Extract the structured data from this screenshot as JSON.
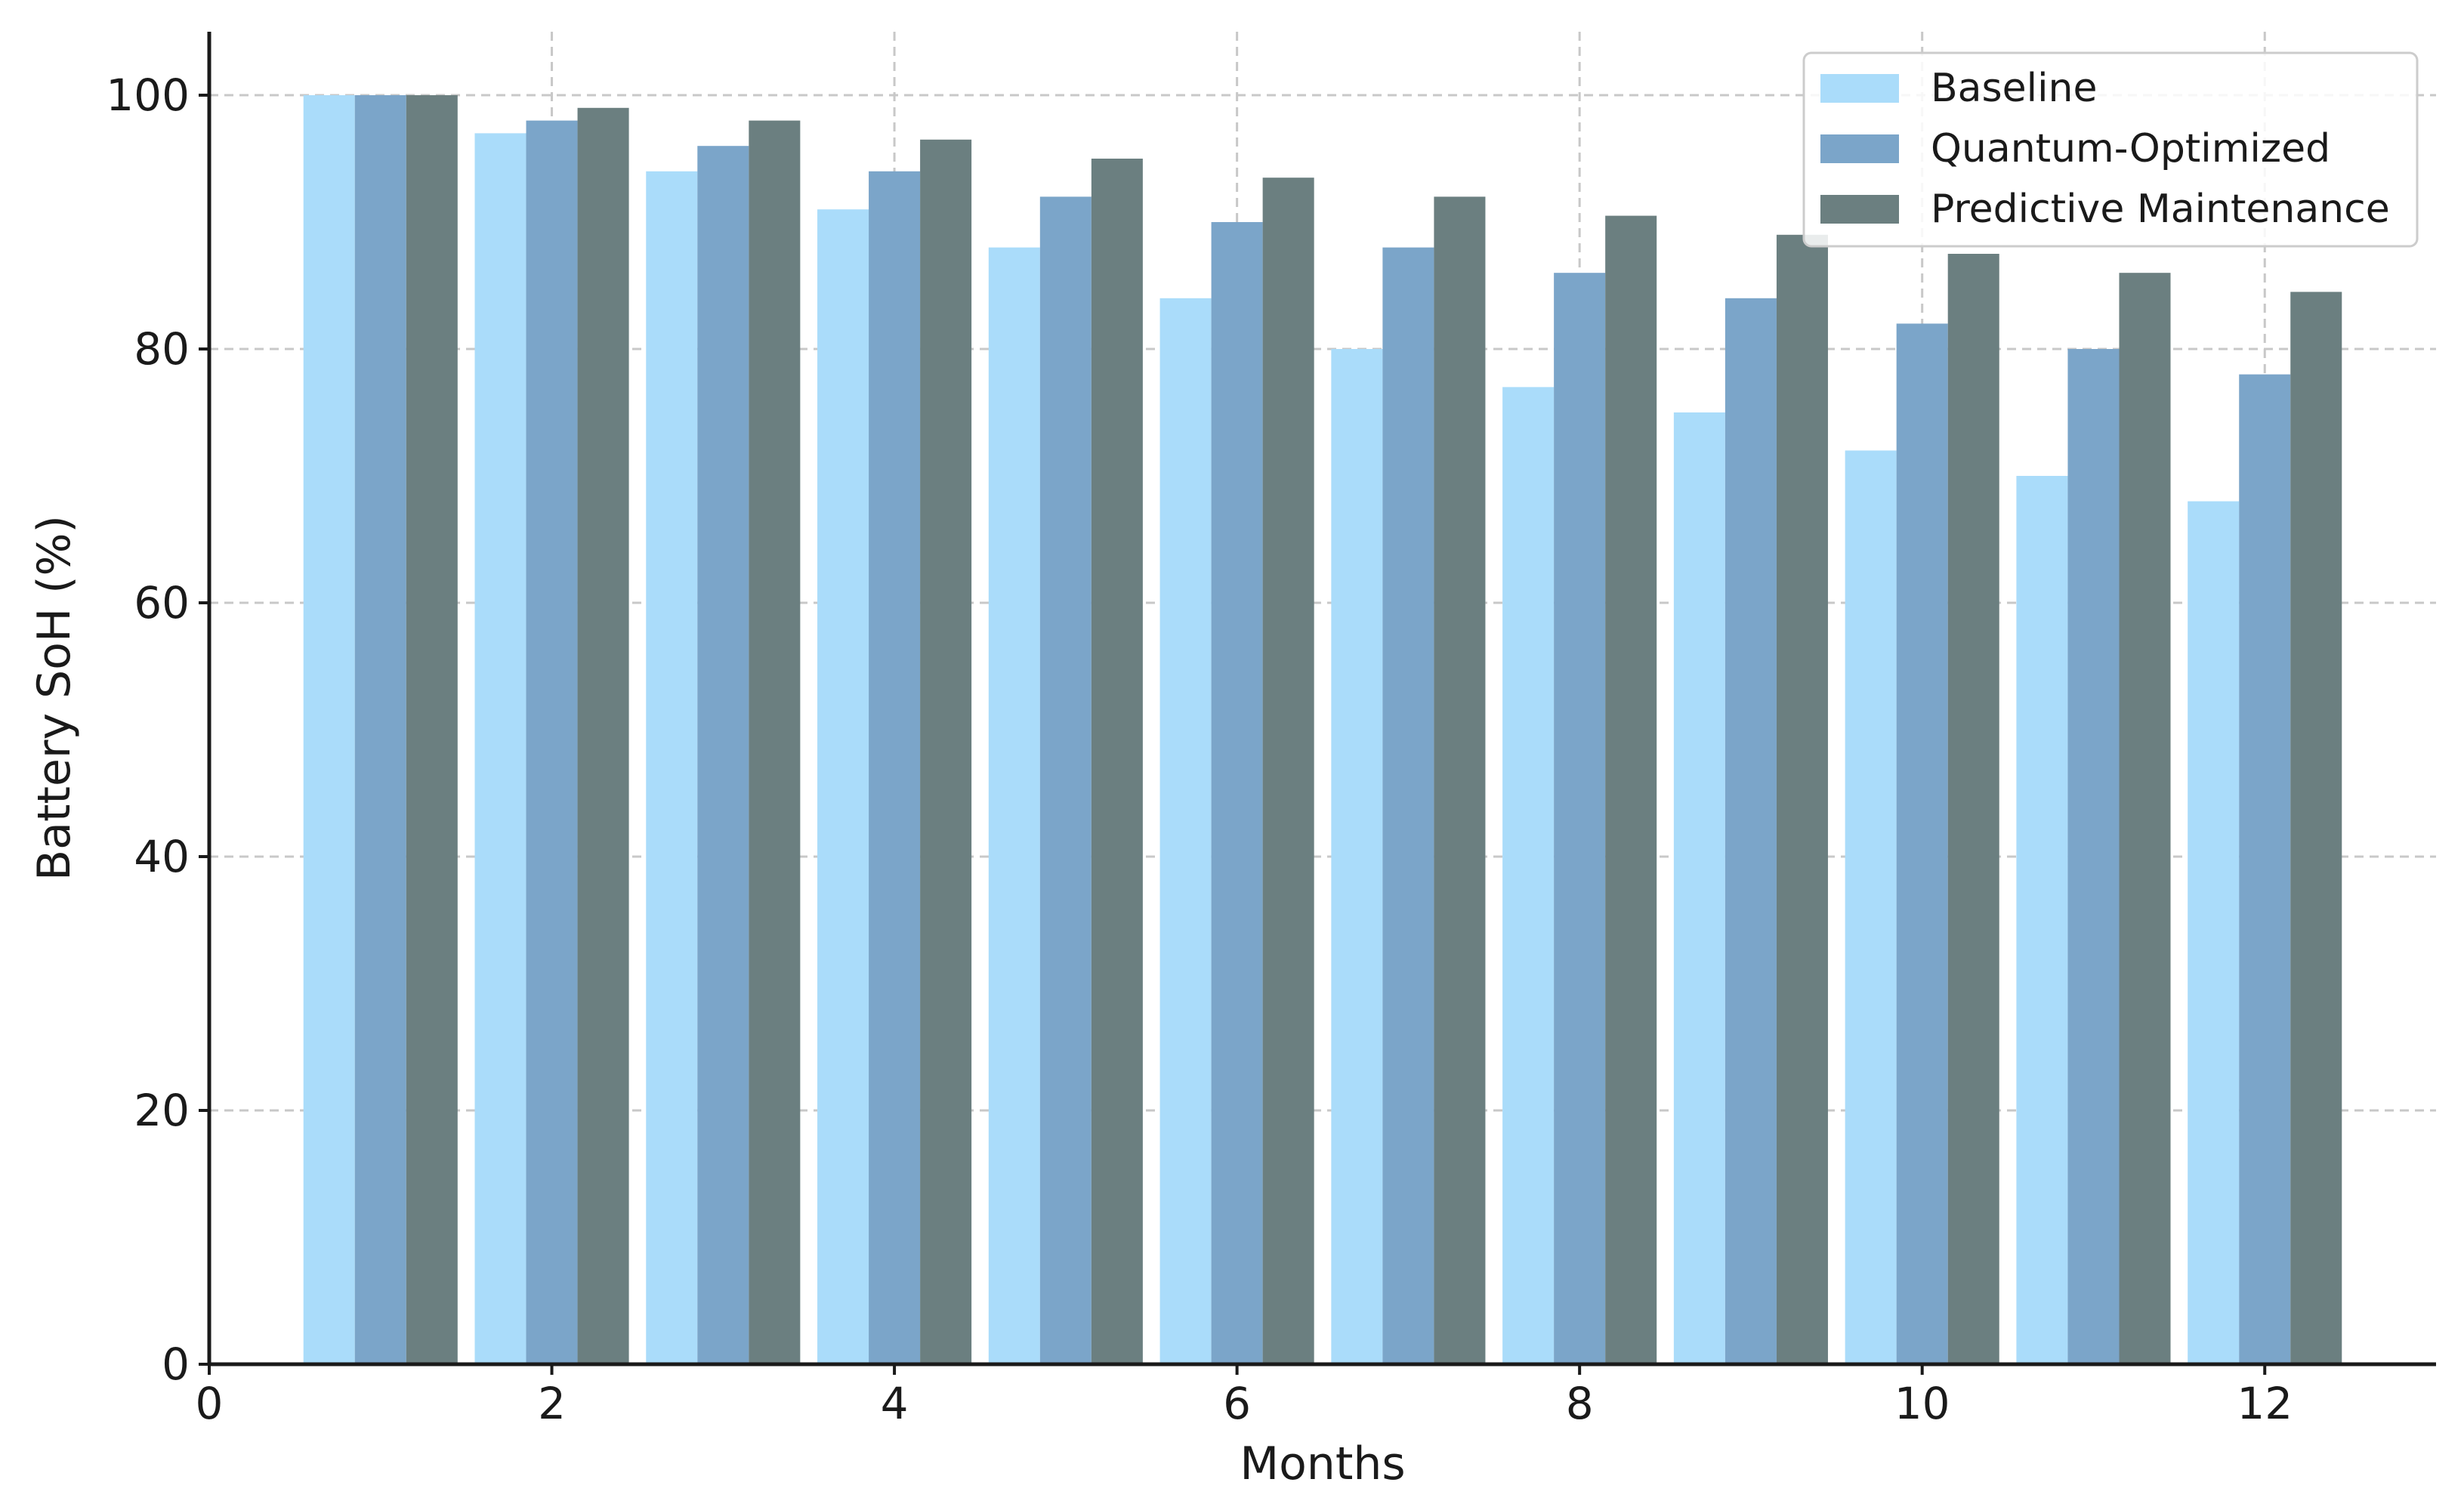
{
  "chart_data": {
    "type": "bar",
    "title": "",
    "xlabel": "Months",
    "ylabel": "Battery SoH (%)",
    "x": [
      1,
      2,
      3,
      4,
      5,
      6,
      7,
      8,
      9,
      10,
      11,
      12
    ],
    "xlim": [
      0,
      13
    ],
    "ylim": [
      0,
      105
    ],
    "xticks": [
      0,
      2,
      4,
      6,
      8,
      10,
      12
    ],
    "yticks": [
      0,
      20,
      40,
      60,
      80,
      100
    ],
    "grid": true,
    "legend_position": "top-right",
    "series": [
      {
        "name": "Baseline",
        "color": "#aadcfa",
        "values": [
          100,
          97,
          94,
          91,
          88,
          84,
          80,
          77,
          75,
          72,
          70,
          68
        ]
      },
      {
        "name": "Quantum-Optimized",
        "color": "#7ba5c9",
        "values": [
          100,
          98,
          96,
          94,
          92,
          90,
          88,
          86,
          84,
          82,
          80,
          78
        ]
      },
      {
        "name": "Predictive Maintenance",
        "color": "#6b7f80",
        "values": [
          100,
          99,
          98,
          96.5,
          95,
          93.5,
          92,
          90.5,
          89,
          87.5,
          86,
          84.5
        ]
      }
    ]
  }
}
